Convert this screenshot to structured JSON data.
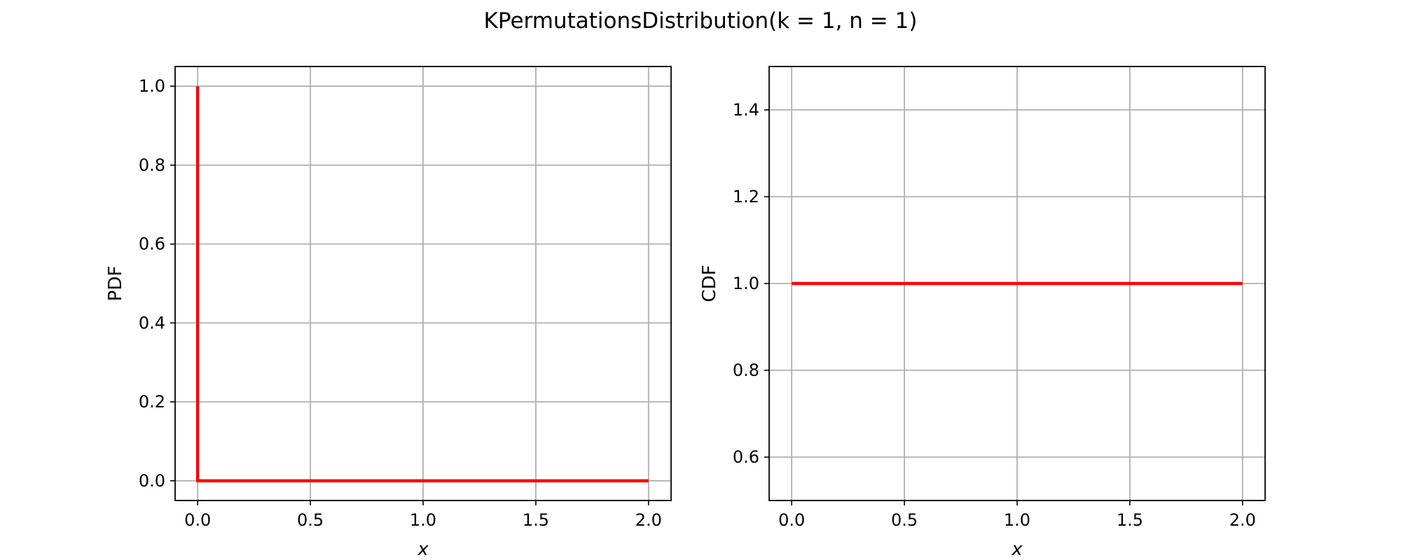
{
  "chart_data": {
    "title": "KPermutationsDistribution(k = 1, n = 1)",
    "line_color": "#ff0000",
    "grid": true,
    "charts": [
      {
        "type": "line",
        "xlabel": "x",
        "ylabel": "PDF",
        "xlim": [
          -0.1,
          2.1
        ],
        "ylim": [
          -0.05,
          1.05
        ],
        "xticks": [
          0.0,
          0.5,
          1.0,
          1.5,
          2.0
        ],
        "yticks": [
          0.0,
          0.2,
          0.4,
          0.6,
          0.8,
          1.0
        ],
        "x": [
          0.0,
          0.0,
          0.0,
          2.0
        ],
        "y": [
          1.0,
          0.0,
          0.0,
          0.0
        ]
      },
      {
        "type": "line",
        "xlabel": "x",
        "ylabel": "CDF",
        "xlim": [
          -0.1,
          2.1
        ],
        "ylim": [
          0.5,
          1.5
        ],
        "xticks": [
          0.0,
          0.5,
          1.0,
          1.5,
          2.0
        ],
        "yticks": [
          0.6,
          0.8,
          1.0,
          1.2,
          1.4
        ],
        "x": [
          0.0,
          2.0
        ],
        "y": [
          1.0,
          1.0
        ]
      }
    ]
  }
}
